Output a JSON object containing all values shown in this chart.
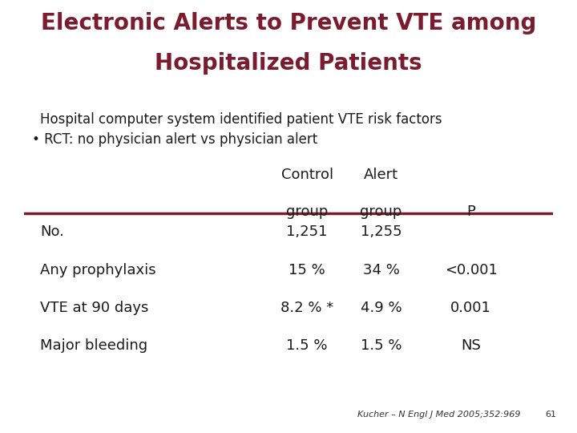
{
  "title_line1": "Electronic Alerts to Prevent VTE among",
  "title_line2": "Hospitalized Patients",
  "title_color": "#7B1C2E",
  "bg_color": "#FFFFFF",
  "subtitle1": "Hospital computer system identified patient VTE risk factors",
  "subtitle2": "• RCT: no physician alert vs physician alert",
  "col_header1a": "Control",
  "col_header1b": "group",
  "col_header2a": "Alert",
  "col_header2b": "group",
  "col_header3": "P",
  "rows": [
    [
      "No.",
      "1,251",
      "1,255",
      ""
    ],
    [
      "Any prophylaxis",
      "15 %",
      "34 %",
      "<0.001"
    ],
    [
      "VTE at 90 days",
      "8.2 % *",
      "4.9 %",
      "0.001"
    ],
    [
      "Major bleeding",
      "1.5 %",
      "1.5 %",
      "NS"
    ]
  ],
  "table_border_color": "#666666",
  "header_line_color": "#7B1C2E",
  "footer_right": "Kucher – N Engl J Med 2005;352:969",
  "footer_page": "61",
  "text_color": "#1A1A1A",
  "title_fontsize": 20,
  "body_fontsize": 13,
  "subtitle_fontsize": 12
}
